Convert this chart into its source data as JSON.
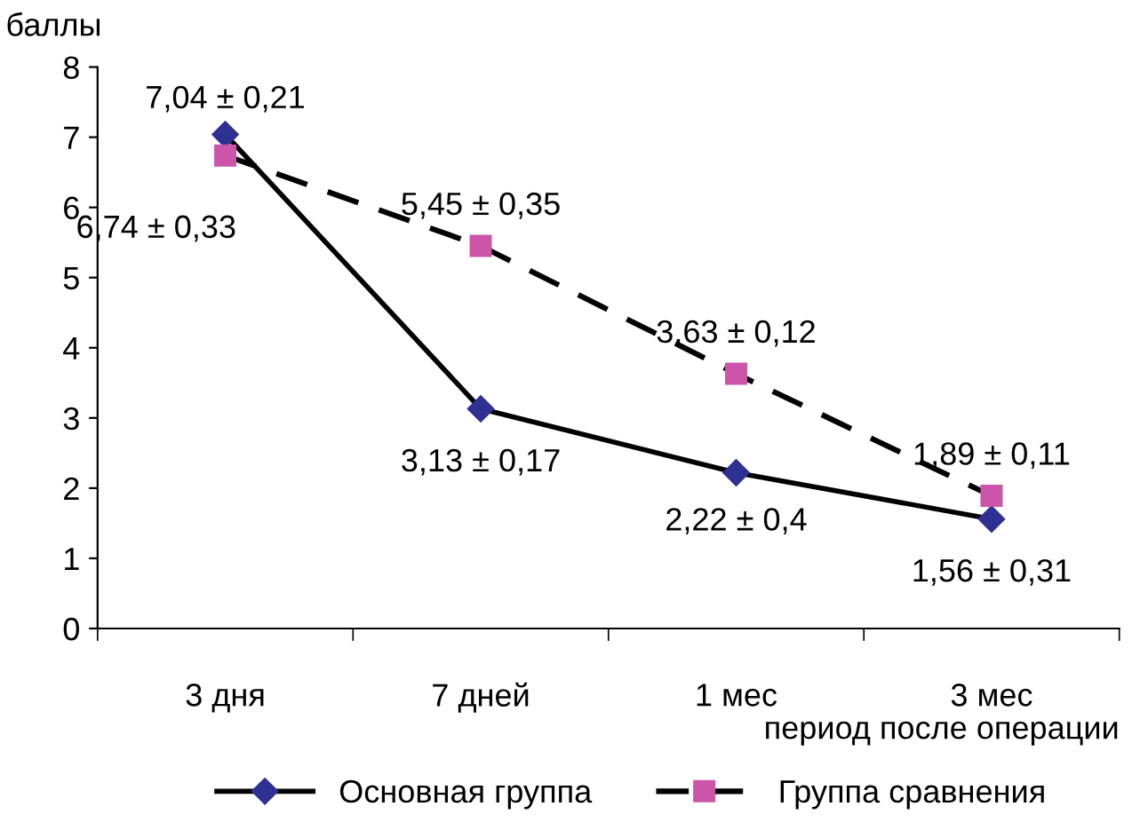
{
  "chart_data": {
    "type": "line",
    "ylabel": "баллы",
    "xlabel": "период после операции",
    "categories": [
      "3 дня",
      "7 дней",
      "1 мес",
      "3 мес"
    ],
    "series": [
      {
        "name": "Основная группа",
        "color": "#2e3192",
        "marker": "diamond",
        "line_style": "solid",
        "values": [
          7.04,
          3.13,
          2.22,
          1.56
        ],
        "value_labels": [
          "7,04 ± 0,21",
          "3,13 ± 0,17",
          "2,22 ± 0,4",
          "1,56 ± 0,31"
        ]
      },
      {
        "name": "Группа сравнения",
        "color": "#cc55aa",
        "marker": "square",
        "line_style": "dashed",
        "values": [
          6.74,
          5.45,
          3.63,
          1.89
        ],
        "value_labels": [
          "6,74 ± 0,33",
          "5,45 ± 0,35",
          "3,63 ± 0,12",
          "1,89 ± 0,11"
        ]
      }
    ],
    "ylim": [
      0,
      8
    ],
    "yticks": [
      0,
      1,
      2,
      3,
      4,
      5,
      6,
      7,
      8
    ],
    "grid": false,
    "legend": "bottom"
  }
}
